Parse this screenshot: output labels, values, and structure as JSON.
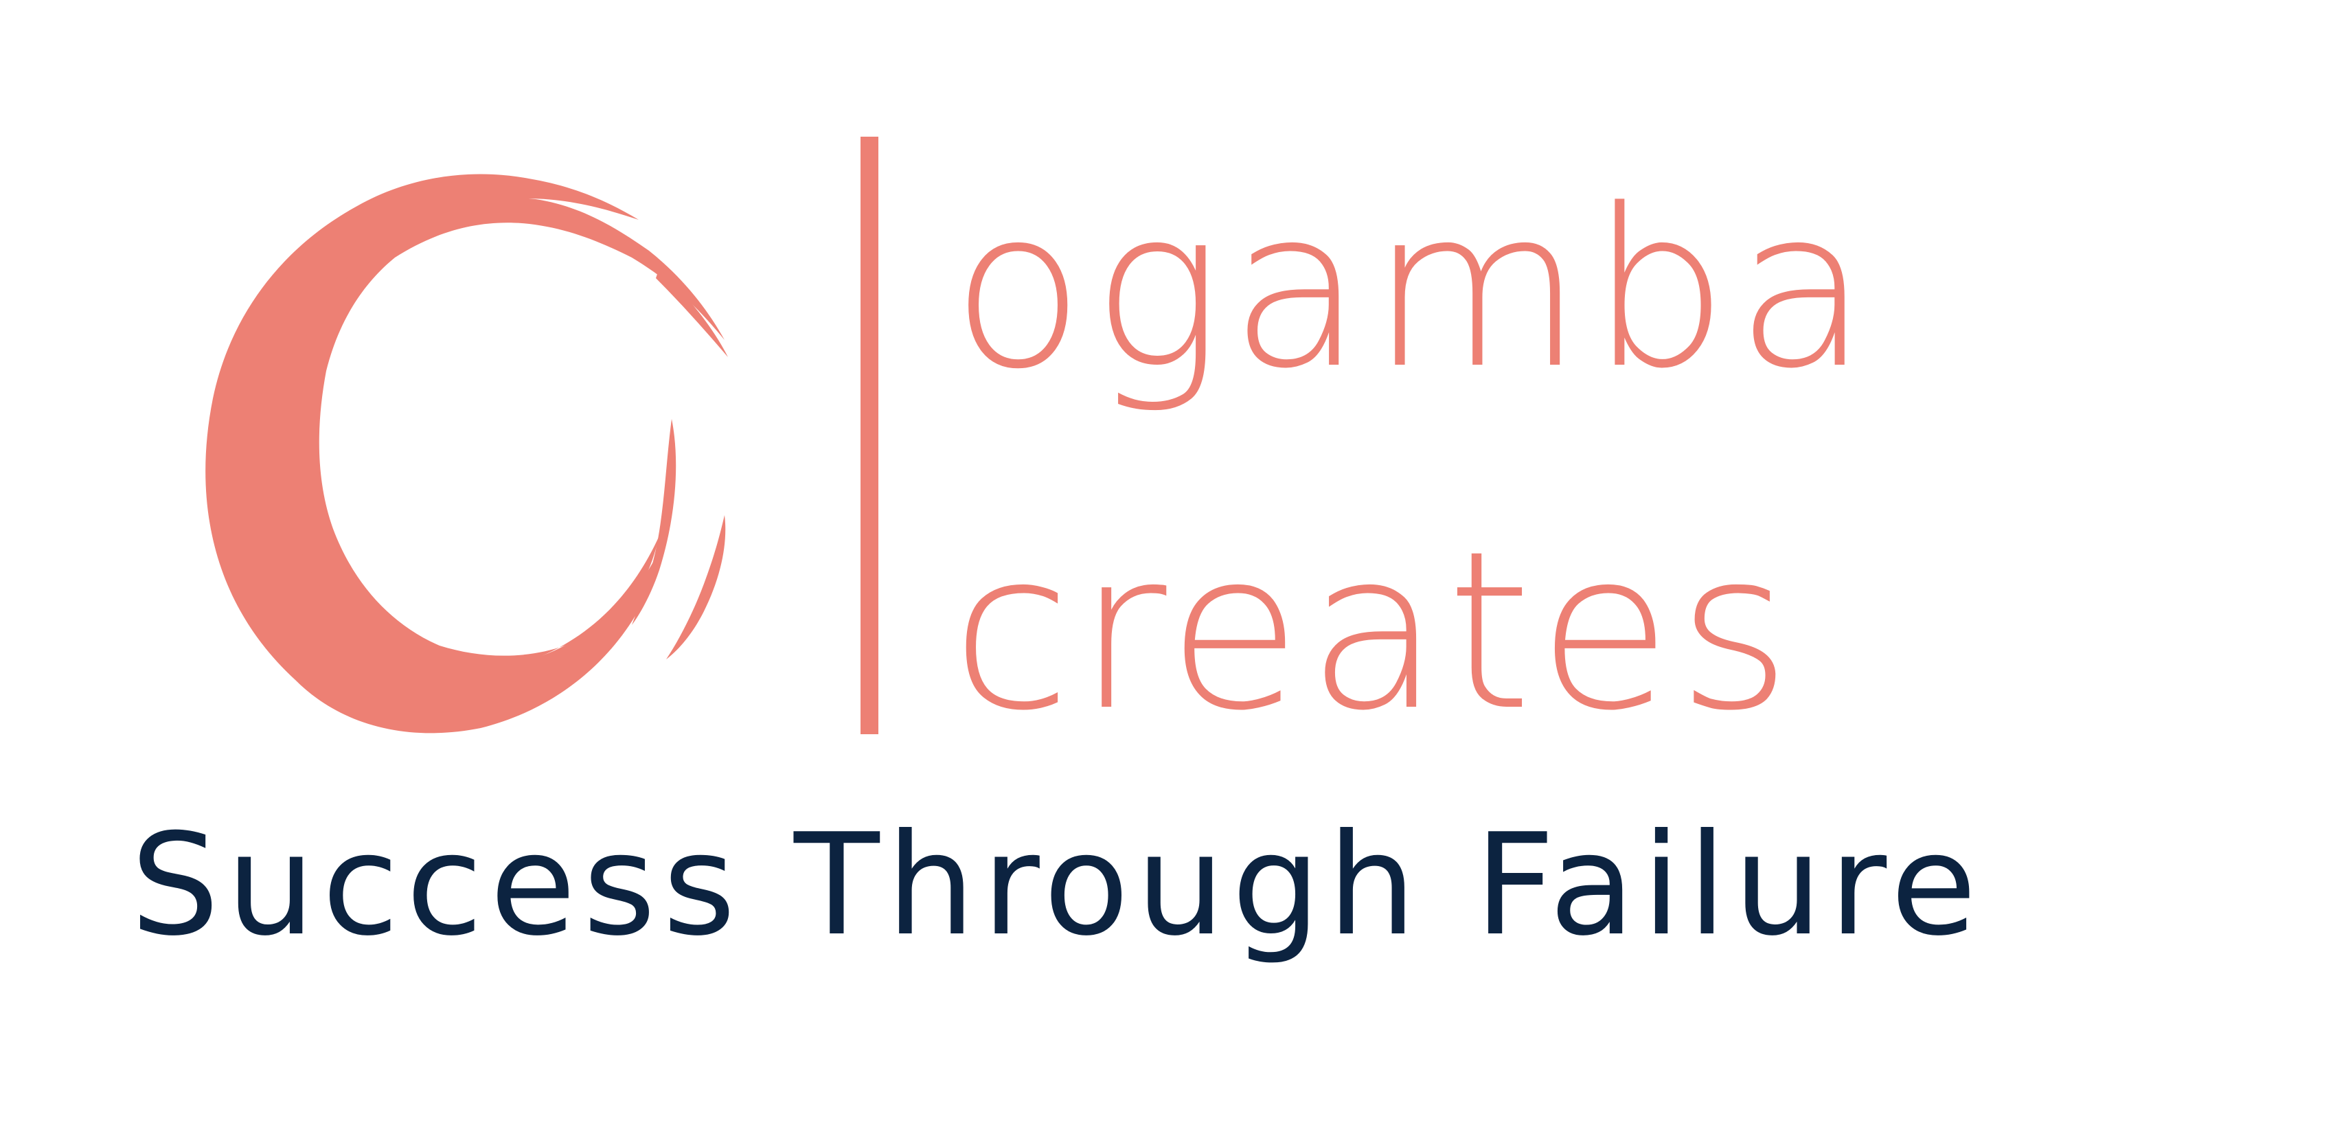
{
  "colors": {
    "brand": "#ed8074",
    "tagline": "#0c2340",
    "background": "#ffffff"
  },
  "logo": {
    "mark": "enso-circle",
    "name_line_1": "ogamba",
    "name_line_2": "creates",
    "tagline": "Success Through Failure"
  }
}
